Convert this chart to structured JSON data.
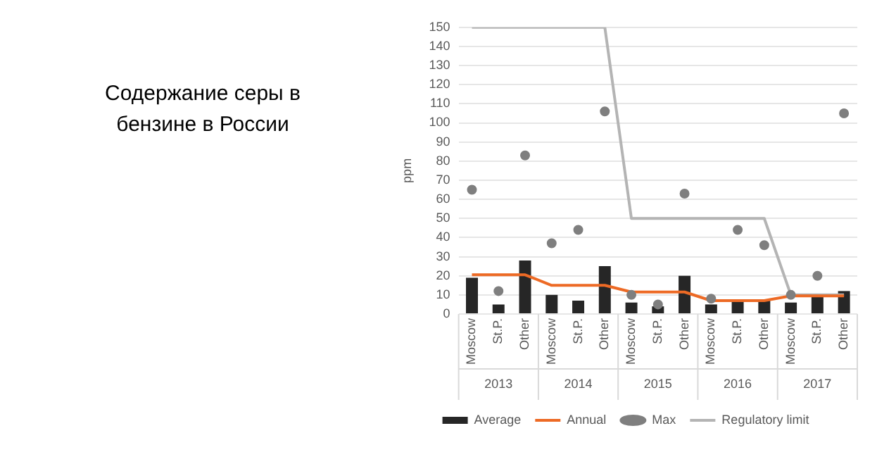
{
  "chart_data": {
    "type": "bar",
    "title": "Содержание серы в бензине в России",
    "ylabel": "ppm",
    "categories": [
      "Moscow",
      "St.P.",
      "Other",
      "Moscow",
      "St.P.",
      "Other",
      "Moscow",
      "St.P.",
      "Other",
      "Moscow",
      "St.P.",
      "Other",
      "Moscow",
      "St.P.",
      "Other"
    ],
    "annotations": [
      "2013",
      "2014",
      "2015",
      "2016",
      "2017"
    ],
    "series": [
      {
        "name": "Average",
        "color": "#262626",
        "values": [
          19,
          5,
          28,
          10,
          7,
          25,
          6,
          4,
          20,
          5,
          7,
          7,
          6,
          9,
          12
        ]
      },
      {
        "name": "Annual",
        "type": "line",
        "color": "#ed6a25",
        "values": [
          20.5,
          20.5,
          20.5,
          15,
          15,
          15,
          11.5,
          11.5,
          11.5,
          7,
          7,
          7,
          9.5,
          9.5,
          9.5
        ]
      },
      {
        "name": "Max",
        "type": "scatter",
        "marker": "circle",
        "color": "#7f7f7f",
        "values": [
          65,
          12,
          83,
          37,
          44,
          106,
          10,
          5,
          63,
          8,
          44,
          36,
          10,
          20,
          105
        ]
      },
      {
        "name": "Regulatory limit",
        "type": "line",
        "color": "#b4b4b4",
        "values": [
          150,
          150,
          150,
          150,
          150,
          150,
          50,
          50,
          50,
          50,
          50,
          50,
          10,
          10,
          10
        ]
      }
    ],
    "ylim": [
      0,
      150
    ],
    "yticks": [
      0,
      10,
      20,
      30,
      40,
      50,
      60,
      70,
      80,
      90,
      100,
      110,
      120,
      130,
      140,
      150
    ],
    "grid": "y",
    "legend": "bottom"
  }
}
